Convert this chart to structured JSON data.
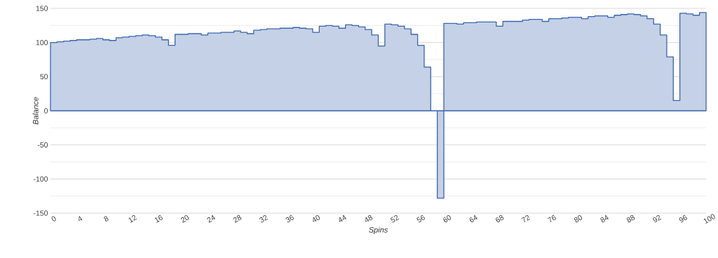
{
  "chart_data": {
    "type": "area",
    "xlabel": "Spins",
    "ylabel": "Balance",
    "x": [
      0,
      1,
      2,
      3,
      4,
      5,
      6,
      7,
      8,
      9,
      10,
      11,
      12,
      13,
      14,
      15,
      16,
      17,
      18,
      19,
      20,
      21,
      22,
      23,
      24,
      25,
      26,
      27,
      28,
      29,
      30,
      31,
      32,
      33,
      34,
      35,
      36,
      37,
      38,
      39,
      40,
      41,
      42,
      43,
      44,
      45,
      46,
      47,
      48,
      49,
      50,
      51,
      52,
      53,
      54,
      55,
      56,
      57,
      58,
      59,
      60,
      61,
      62,
      63,
      64,
      65,
      66,
      67,
      68,
      69,
      70,
      71,
      72,
      73,
      74,
      75,
      76,
      77,
      78,
      79,
      80,
      81,
      82,
      83,
      84,
      85,
      86,
      87,
      88,
      89,
      90,
      91,
      92,
      93,
      94,
      95,
      96,
      97,
      98,
      99
    ],
    "values": [
      100,
      101,
      102,
      103,
      104,
      104,
      105,
      106,
      104,
      103,
      107,
      108,
      109,
      110,
      111,
      110,
      108,
      104,
      96,
      112,
      112,
      113,
      113,
      111,
      114,
      114,
      115,
      115,
      117,
      115,
      113,
      118,
      119,
      120,
      120,
      121,
      121,
      122,
      121,
      120,
      115,
      124,
      125,
      124,
      121,
      126,
      125,
      123,
      119,
      111,
      95,
      127,
      126,
      124,
      120,
      112,
      96,
      64,
      0,
      -128,
      128,
      128,
      127,
      129,
      129,
      130,
      130,
      130,
      124,
      131,
      131,
      131,
      133,
      134,
      134,
      131,
      135,
      135,
      136,
      137,
      137,
      135,
      138,
      139,
      139,
      137,
      140,
      141,
      142,
      141,
      139,
      135,
      127,
      111,
      79,
      15,
      143,
      142,
      140,
      144
    ],
    "color": "#3a65ad",
    "xlim": [
      0,
      100
    ],
    "ylim": [
      -150,
      150
    ],
    "xticks": [
      0,
      4,
      8,
      12,
      16,
      20,
      24,
      28,
      32,
      36,
      40,
      44,
      48,
      52,
      56,
      60,
      64,
      68,
      72,
      76,
      80,
      84,
      88,
      92,
      96,
      100
    ],
    "yticks": [
      -150,
      -100,
      -50,
      0,
      50,
      100,
      150
    ],
    "grid": "y"
  }
}
